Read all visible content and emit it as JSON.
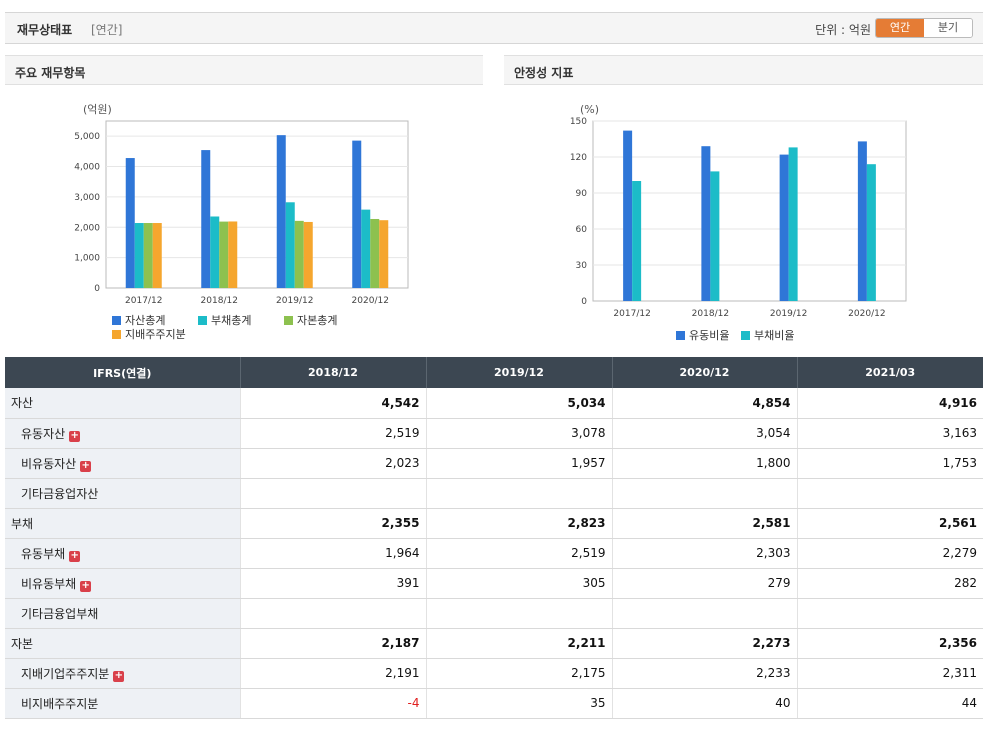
{
  "header": {
    "title": "재무상태표",
    "period": "[연간]",
    "unit_label": "단위 : 억원",
    "toggle_annual": "연간",
    "toggle_quarter": "분기"
  },
  "left_chart": {
    "panel_title": "주요 재무항목",
    "unit": "(억원)",
    "colors": {
      "asset": "#2f76d7",
      "liab": "#1cbcc8",
      "equity": "#8dc14f",
      "parent": "#f5a62e"
    },
    "chart_data": {
      "type": "bar",
      "categories": [
        "2017/12",
        "2018/12",
        "2019/12",
        "2020/12"
      ],
      "series": [
        {
          "name": "자산총계",
          "values": [
            4280,
            4542,
            5034,
            4854
          ]
        },
        {
          "name": "부채총계",
          "values": [
            2140,
            2355,
            2823,
            2581
          ]
        },
        {
          "name": "자본총계",
          "values": [
            2140,
            2187,
            2211,
            2273
          ]
        },
        {
          "name": "지배주주지분",
          "values": [
            2140,
            2191,
            2175,
            2233
          ]
        }
      ],
      "ylim": [
        0,
        5500
      ],
      "yticks": [
        "0",
        "1,000",
        "2,000",
        "3,000",
        "4,000",
        "5,000"
      ]
    }
  },
  "right_chart": {
    "panel_title": "안정성 지표",
    "unit": "(%)",
    "colors": {
      "current": "#2f76d7",
      "debt": "#1cbcc8"
    },
    "chart_data": {
      "type": "bar",
      "categories": [
        "2017/12",
        "2018/12",
        "2019/12",
        "2020/12"
      ],
      "series": [
        {
          "name": "유동비율",
          "values": [
            142,
            129,
            122,
            133
          ]
        },
        {
          "name": "부채비율",
          "values": [
            100,
            108,
            128,
            114
          ]
        }
      ],
      "ylim": [
        0,
        150
      ],
      "yticks": [
        "0",
        "30",
        "60",
        "90",
        "120",
        "150"
      ]
    }
  },
  "table": {
    "header": [
      "IFRS(연결)",
      "2018/12",
      "2019/12",
      "2020/12",
      "2021/03"
    ],
    "rows": [
      {
        "label": "자산",
        "level": 0,
        "expand": false,
        "values": [
          "4,542",
          "5,034",
          "4,854",
          "4,916"
        ]
      },
      {
        "label": "유동자산",
        "level": 1,
        "expand": true,
        "values": [
          "2,519",
          "3,078",
          "3,054",
          "3,163"
        ]
      },
      {
        "label": "비유동자산",
        "level": 1,
        "expand": true,
        "values": [
          "2,023",
          "1,957",
          "1,800",
          "1,753"
        ]
      },
      {
        "label": "기타금융업자산",
        "level": 1,
        "expand": false,
        "values": [
          "",
          "",
          "",
          ""
        ]
      },
      {
        "label": "부채",
        "level": 0,
        "expand": false,
        "values": [
          "2,355",
          "2,823",
          "2,581",
          "2,561"
        ]
      },
      {
        "label": "유동부채",
        "level": 1,
        "expand": true,
        "values": [
          "1,964",
          "2,519",
          "2,303",
          "2,279"
        ]
      },
      {
        "label": "비유동부채",
        "level": 1,
        "expand": true,
        "values": [
          "391",
          "305",
          "279",
          "282"
        ]
      },
      {
        "label": "기타금융업부채",
        "level": 1,
        "expand": false,
        "values": [
          "",
          "",
          "",
          ""
        ]
      },
      {
        "label": "자본",
        "level": 0,
        "expand": false,
        "values": [
          "2,187",
          "2,211",
          "2,273",
          "2,356"
        ]
      },
      {
        "label": "지배기업주주지분",
        "level": 1,
        "expand": true,
        "values": [
          "2,191",
          "2,175",
          "2,233",
          "2,311"
        ]
      },
      {
        "label": "비지배주주지분",
        "level": 1,
        "expand": false,
        "values": [
          "-4",
          "35",
          "40",
          "44"
        ]
      }
    ]
  }
}
